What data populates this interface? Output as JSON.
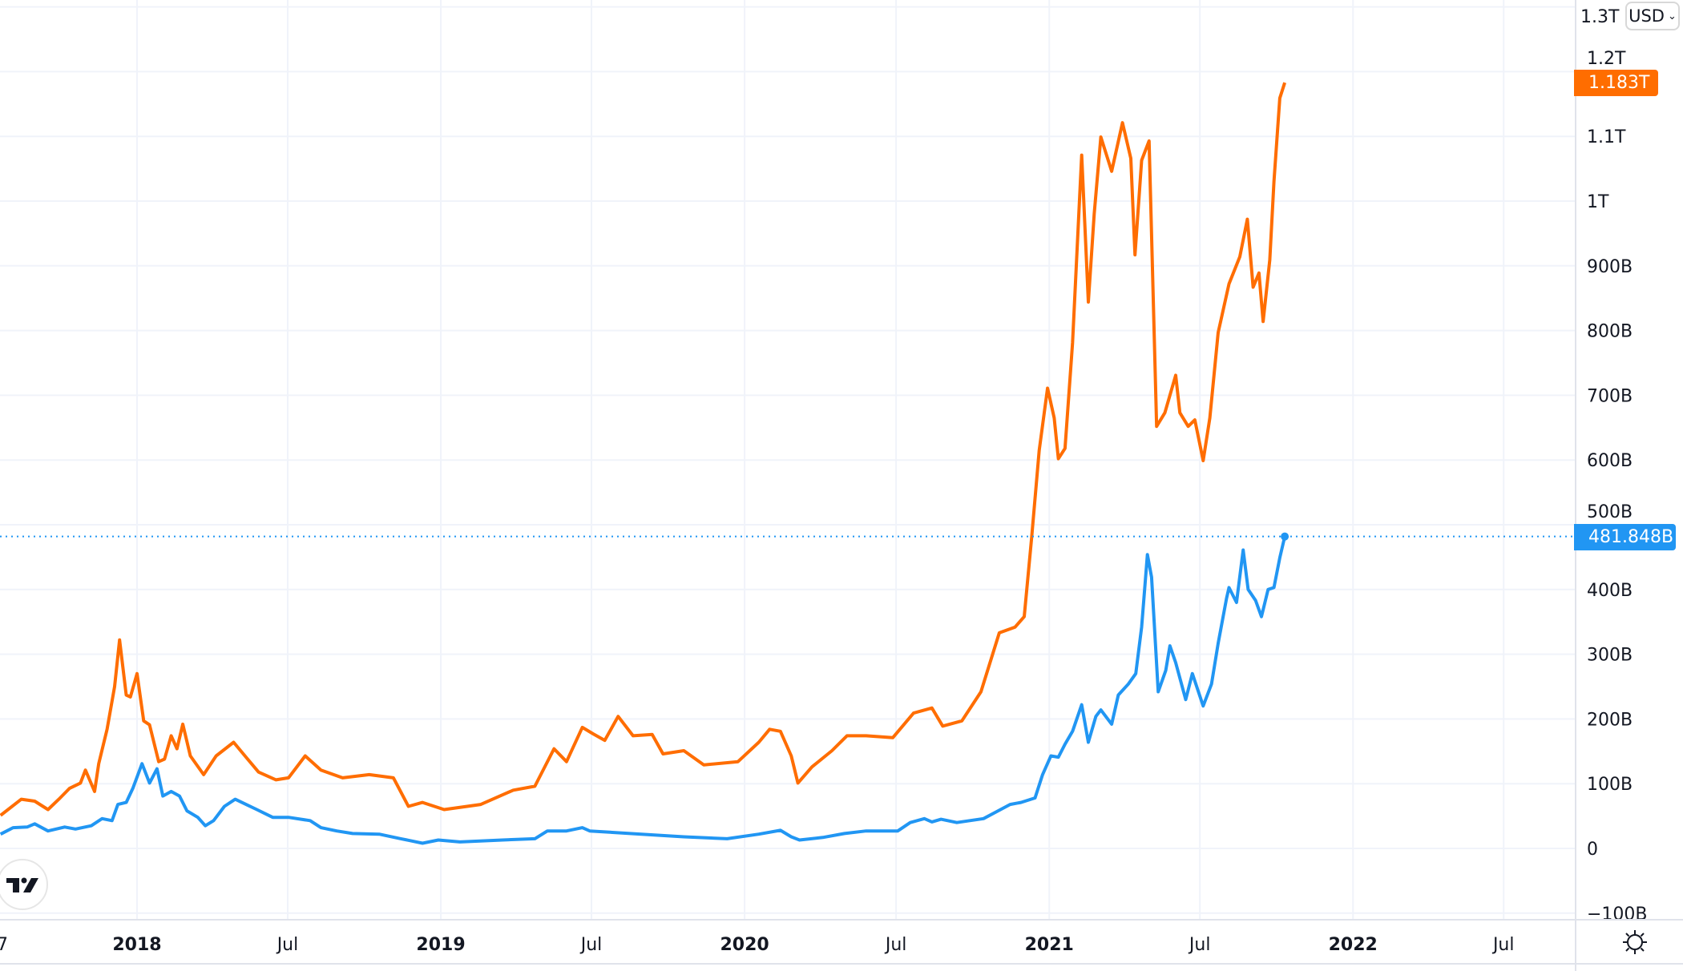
{
  "chart_data": {
    "type": "line",
    "title": "",
    "xlabel": "",
    "ylabel": "",
    "currency_selector": {
      "label": "USD",
      "icon": "chevron-down-icon"
    },
    "y_ticks": [
      "1.3T",
      "1.2T",
      "1.1T",
      "1T",
      "900B",
      "800B",
      "700B",
      "600B",
      "500B",
      "400B",
      "300B",
      "200B",
      "100B",
      "0",
      "−100B"
    ],
    "y_tick_values": [
      1300,
      1200,
      1100,
      1000,
      900,
      800,
      700,
      600,
      500,
      400,
      300,
      200,
      100,
      0,
      -100
    ],
    "y_unit": "billions USD",
    "ylim": [
      -100,
      1300
    ],
    "x_range": [
      "2017-07-21",
      "2022-10-01"
    ],
    "x_ticks": [
      {
        "label": "7",
        "date": "2017-12-31",
        "bold": false,
        "clipped": true
      },
      {
        "label": "2018",
        "date": "2018-01-01",
        "bold": true
      },
      {
        "label": "Jul",
        "date": "2018-07-01",
        "bold": false
      },
      {
        "label": "2019",
        "date": "2019-01-01",
        "bold": true
      },
      {
        "label": "Jul",
        "date": "2019-07-01",
        "bold": false
      },
      {
        "label": "2020",
        "date": "2020-01-01",
        "bold": true
      },
      {
        "label": "Jul",
        "date": "2020-07-01",
        "bold": false
      },
      {
        "label": "2021",
        "date": "2021-01-01",
        "bold": true
      },
      {
        "label": "Jul",
        "date": "2021-07-01",
        "bold": false
      },
      {
        "label": "2022",
        "date": "2022-01-01",
        "bold": true
      },
      {
        "label": "Jul",
        "date": "2022-07-01",
        "bold": false
      }
    ],
    "grid": true,
    "series": [
      {
        "color": "#ff6d00",
        "last_value_label": "1.183T",
        "points": [
          [
            "2017-07-21",
            51
          ],
          [
            "2017-08-15",
            76
          ],
          [
            "2017-08-31",
            73
          ],
          [
            "2017-09-16",
            60
          ],
          [
            "2017-09-29",
            76
          ],
          [
            "2017-10-12",
            93
          ],
          [
            "2017-10-25",
            101
          ],
          [
            "2017-10-31",
            121
          ],
          [
            "2017-11-11",
            88
          ],
          [
            "2017-11-16",
            131
          ],
          [
            "2017-11-26",
            184
          ],
          [
            "2017-12-05",
            250
          ],
          [
            "2017-12-11",
            322
          ],
          [
            "2017-12-19",
            237
          ],
          [
            "2017-12-24",
            234
          ],
          [
            "2018-01-01",
            270
          ],
          [
            "2018-01-09",
            197
          ],
          [
            "2018-01-16",
            191
          ],
          [
            "2018-01-27",
            134
          ],
          [
            "2018-02-03",
            138
          ],
          [
            "2018-02-11",
            174
          ],
          [
            "2018-02-18",
            154
          ],
          [
            "2018-02-25",
            192
          ],
          [
            "2018-03-06",
            143
          ],
          [
            "2018-03-22",
            114
          ],
          [
            "2018-04-06",
            143
          ],
          [
            "2018-04-27",
            164
          ],
          [
            "2018-05-12",
            141
          ],
          [
            "2018-05-27",
            118
          ],
          [
            "2018-06-17",
            106
          ],
          [
            "2018-07-02",
            109
          ],
          [
            "2018-07-22",
            143
          ],
          [
            "2018-08-10",
            121
          ],
          [
            "2018-09-05",
            109
          ],
          [
            "2018-10-07",
            114
          ],
          [
            "2018-11-05",
            109
          ],
          [
            "2018-11-23",
            65
          ],
          [
            "2018-12-10",
            71
          ],
          [
            "2019-01-05",
            60
          ],
          [
            "2019-02-18",
            68
          ],
          [
            "2019-03-29",
            90
          ],
          [
            "2019-04-24",
            96
          ],
          [
            "2019-05-17",
            154
          ],
          [
            "2019-06-01",
            134
          ],
          [
            "2019-06-20",
            187
          ],
          [
            "2019-07-03",
            177
          ],
          [
            "2019-07-17",
            167
          ],
          [
            "2019-08-02",
            204
          ],
          [
            "2019-08-20",
            174
          ],
          [
            "2019-09-12",
            176
          ],
          [
            "2019-09-25",
            146
          ],
          [
            "2019-10-20",
            151
          ],
          [
            "2019-11-13",
            129
          ],
          [
            "2019-12-24",
            134
          ],
          [
            "2020-01-18",
            164
          ],
          [
            "2020-01-31",
            184
          ],
          [
            "2020-02-13",
            181
          ],
          [
            "2020-02-26",
            143
          ],
          [
            "2020-03-05",
            101
          ],
          [
            "2020-03-22",
            126
          ],
          [
            "2020-04-15",
            151
          ],
          [
            "2020-05-03",
            174
          ],
          [
            "2020-05-26",
            174
          ],
          [
            "2020-06-27",
            171
          ],
          [
            "2020-07-22",
            209
          ],
          [
            "2020-08-13",
            217
          ],
          [
            "2020-08-26",
            189
          ],
          [
            "2020-09-18",
            197
          ],
          [
            "2020-10-11",
            242
          ],
          [
            "2020-11-02",
            333
          ],
          [
            "2020-11-21",
            342
          ],
          [
            "2020-12-02",
            358
          ],
          [
            "2020-12-11",
            482
          ],
          [
            "2020-12-20",
            615
          ],
          [
            "2020-12-30",
            711
          ],
          [
            "2021-01-07",
            665
          ],
          [
            "2021-01-12",
            602
          ],
          [
            "2021-01-20",
            618
          ],
          [
            "2021-01-29",
            781
          ],
          [
            "2021-02-09",
            1071
          ],
          [
            "2021-02-17",
            844
          ],
          [
            "2021-02-24",
            980
          ],
          [
            "2021-03-04",
            1099
          ],
          [
            "2021-03-17",
            1046
          ],
          [
            "2021-03-30",
            1121
          ],
          [
            "2021-04-09",
            1066
          ],
          [
            "2021-04-14",
            917
          ],
          [
            "2021-04-22",
            1063
          ],
          [
            "2021-05-01",
            1093
          ],
          [
            "2021-05-10",
            652
          ],
          [
            "2021-05-20",
            673
          ],
          [
            "2021-06-02",
            731
          ],
          [
            "2021-06-07",
            673
          ],
          [
            "2021-06-17",
            652
          ],
          [
            "2021-06-25",
            662
          ],
          [
            "2021-07-05",
            599
          ],
          [
            "2021-07-13",
            665
          ],
          [
            "2021-07-23",
            797
          ],
          [
            "2021-08-05",
            872
          ],
          [
            "2021-08-18",
            914
          ],
          [
            "2021-08-27",
            972
          ],
          [
            "2021-09-03",
            867
          ],
          [
            "2021-09-10",
            889
          ],
          [
            "2021-09-15",
            814
          ],
          [
            "2021-09-23",
            909
          ],
          [
            "2021-09-28",
            1030
          ],
          [
            "2021-10-05",
            1159
          ],
          [
            "2021-10-11",
            1183
          ]
        ]
      },
      {
        "color": "#2196f3",
        "last_value_label": "481.848B",
        "points": [
          [
            "2017-07-21",
            22
          ],
          [
            "2017-08-05",
            32
          ],
          [
            "2017-08-22",
            33
          ],
          [
            "2017-08-31",
            38
          ],
          [
            "2017-09-16",
            27
          ],
          [
            "2017-10-06",
            33
          ],
          [
            "2017-10-19",
            30
          ],
          [
            "2017-11-07",
            35
          ],
          [
            "2017-11-20",
            46
          ],
          [
            "2017-12-02",
            43
          ],
          [
            "2017-12-09",
            68
          ],
          [
            "2017-12-19",
            71
          ],
          [
            "2017-12-27",
            93
          ],
          [
            "2018-01-07",
            131
          ],
          [
            "2018-01-16",
            101
          ],
          [
            "2018-01-25",
            123
          ],
          [
            "2018-02-01",
            81
          ],
          [
            "2018-02-11",
            88
          ],
          [
            "2018-02-21",
            81
          ],
          [
            "2018-03-02",
            58
          ],
          [
            "2018-03-15",
            48
          ],
          [
            "2018-03-24",
            35
          ],
          [
            "2018-04-03",
            43
          ],
          [
            "2018-04-16",
            65
          ],
          [
            "2018-04-29",
            76
          ],
          [
            "2018-05-12",
            68
          ],
          [
            "2018-05-25",
            60
          ],
          [
            "2018-06-13",
            48
          ],
          [
            "2018-07-02",
            48
          ],
          [
            "2018-07-28",
            43
          ],
          [
            "2018-08-10",
            32
          ],
          [
            "2018-08-29",
            27
          ],
          [
            "2018-09-17",
            23
          ],
          [
            "2018-10-19",
            22
          ],
          [
            "2018-11-14",
            15
          ],
          [
            "2018-12-10",
            8
          ],
          [
            "2018-12-29",
            13
          ],
          [
            "2019-01-24",
            10
          ],
          [
            "2019-03-16",
            13
          ],
          [
            "2019-04-24",
            15
          ],
          [
            "2019-05-09",
            27
          ],
          [
            "2019-06-01",
            27
          ],
          [
            "2019-06-20",
            32
          ],
          [
            "2019-06-29",
            27
          ],
          [
            "2019-07-23",
            25
          ],
          [
            "2019-08-30",
            22
          ],
          [
            "2019-10-20",
            18
          ],
          [
            "2019-12-11",
            15
          ],
          [
            "2020-01-18",
            22
          ],
          [
            "2020-02-13",
            28
          ],
          [
            "2020-02-26",
            18
          ],
          [
            "2020-03-07",
            13
          ],
          [
            "2020-04-04",
            17
          ],
          [
            "2020-04-30",
            23
          ],
          [
            "2020-05-26",
            27
          ],
          [
            "2020-07-03",
            27
          ],
          [
            "2020-07-18",
            40
          ],
          [
            "2020-08-04",
            46
          ],
          [
            "2020-08-13",
            41
          ],
          [
            "2020-08-24",
            45
          ],
          [
            "2020-09-12",
            40
          ],
          [
            "2020-10-14",
            46
          ],
          [
            "2020-10-27",
            55
          ],
          [
            "2020-11-15",
            68
          ],
          [
            "2020-11-28",
            71
          ],
          [
            "2020-12-15",
            78
          ],
          [
            "2020-12-24",
            114
          ],
          [
            "2021-01-03",
            143
          ],
          [
            "2021-01-12",
            141
          ],
          [
            "2021-01-20",
            161
          ],
          [
            "2021-01-29",
            181
          ],
          [
            "2021-02-09",
            222
          ],
          [
            "2021-02-17",
            164
          ],
          [
            "2021-02-26",
            204
          ],
          [
            "2021-03-04",
            214
          ],
          [
            "2021-03-17",
            192
          ],
          [
            "2021-03-25",
            237
          ],
          [
            "2021-04-06",
            254
          ],
          [
            "2021-04-15",
            270
          ],
          [
            "2021-04-22",
            342
          ],
          [
            "2021-04-29",
            454
          ],
          [
            "2021-05-04",
            419
          ],
          [
            "2021-05-12",
            242
          ],
          [
            "2021-05-21",
            275
          ],
          [
            "2021-05-26",
            313
          ],
          [
            "2021-06-02",
            287
          ],
          [
            "2021-06-14",
            230
          ],
          [
            "2021-06-22",
            270
          ],
          [
            "2021-07-05",
            220
          ],
          [
            "2021-07-15",
            254
          ],
          [
            "2021-07-23",
            317
          ],
          [
            "2021-08-02",
            386
          ],
          [
            "2021-08-05",
            403
          ],
          [
            "2021-08-14",
            380
          ],
          [
            "2021-08-22",
            461
          ],
          [
            "2021-08-28",
            400
          ],
          [
            "2021-09-06",
            383
          ],
          [
            "2021-09-13",
            358
          ],
          [
            "2021-09-21",
            400
          ],
          [
            "2021-09-28",
            403
          ],
          [
            "2021-10-05",
            449
          ],
          [
            "2021-10-11",
            481.848
          ]
        ]
      }
    ]
  },
  "icons": {
    "logo": "tradingview-logo",
    "settings": "settings-icon"
  }
}
